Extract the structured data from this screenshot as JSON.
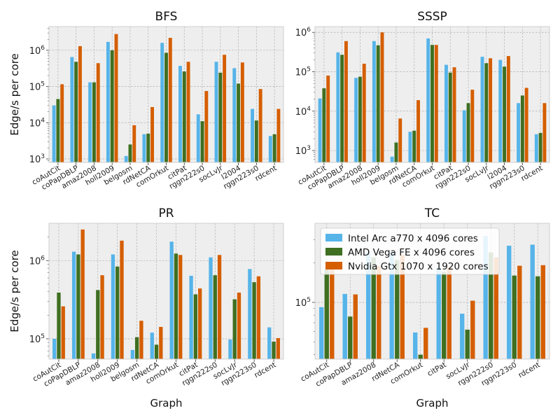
{
  "colors": {
    "intel": "#56b4e9",
    "amd": "#3f6f21",
    "nvidia": "#d55e00",
    "panel_bg": "#eeeeee",
    "grid": "#b0b0b0"
  },
  "legend": {
    "placement": "top-left of TC panel",
    "entries": [
      "Intel Arc a770 x 4096 cores",
      "AMD Vega FE x 4096 cores",
      "Nvidia Gtx 1070 x 1920 cores"
    ]
  },
  "chart_data": [
    {
      "type": "bar",
      "title": "BFS",
      "xlabel": "",
      "ylabel": "Edge/s per core",
      "yscale": "log",
      "ylim": [
        800,
        4500000
      ],
      "yticks": [
        "10^3",
        "10^4",
        "10^5",
        "10^6"
      ],
      "grid": true,
      "categories": [
        "coAutCit",
        "coPapDBLP",
        "amaz2008",
        "holl2009",
        "belgosm",
        "rdNetCA",
        "comOrkut",
        "citPat",
        "rggn222s0",
        "socLvJr",
        "l2004",
        "rggn223s0",
        "rdcent"
      ],
      "series": [
        {
          "name": "Intel Arc a770 x 4096 cores",
          "values": [
            30000,
            650000,
            130000,
            1700000,
            1200,
            4800,
            1600000,
            370000,
            17000,
            480000,
            320000,
            24000,
            4300
          ]
        },
        {
          "name": "AMD Vega FE x 4096 cores",
          "values": [
            45000,
            480000,
            130000,
            1000000,
            2500,
            5000,
            850000,
            260000,
            11000,
            240000,
            120000,
            11500,
            4800
          ]
        },
        {
          "name": "Nvidia Gtx 1070 x 1920 cores",
          "values": [
            115000,
            1300000,
            440000,
            2800000,
            8500,
            27000,
            2200000,
            480000,
            75000,
            750000,
            460000,
            85000,
            24000
          ]
        }
      ]
    },
    {
      "type": "bar",
      "title": "SSSP",
      "xlabel": "",
      "ylabel": "",
      "yscale": "log",
      "ylim": [
        500,
        1400000
      ],
      "yticks": [
        "10^3",
        "10^4",
        "10^5",
        "10^6"
      ],
      "grid": true,
      "categories": [
        "coAutCit",
        "coPapDBLP",
        "amaz2008",
        "holl2009",
        "belgosm",
        "rdNetCA",
        "comOrkut",
        "citPat",
        "rggn222s0",
        "socLvJr",
        "l2004",
        "rggn223s0",
        "rdcent"
      ],
      "series": [
        {
          "name": "Intel Arc a770 x 4096 cores",
          "values": [
            21000,
            310000,
            70000,
            600000,
            700,
            3000,
            700000,
            150000,
            10500,
            240000,
            200000,
            16000,
            2600
          ]
        },
        {
          "name": "AMD Vega FE x 4096 cores",
          "values": [
            38000,
            270000,
            75000,
            470000,
            1600,
            3200,
            480000,
            95000,
            16000,
            165000,
            135000,
            25000,
            2800
          ]
        },
        {
          "name": "Nvidia Gtx 1070 x 1920 cores",
          "values": [
            80000,
            600000,
            160000,
            1000000,
            6500,
            19000,
            480000,
            130000,
            35000,
            220000,
            250000,
            39000,
            16000
          ]
        }
      ]
    },
    {
      "type": "bar",
      "title": "PR",
      "xlabel": "Graph",
      "ylabel": "Edge/s per core",
      "yscale": "log",
      "ylim": [
        55000,
        3000000
      ],
      "yticks": [
        "10^5",
        "10^6"
      ],
      "grid": true,
      "categories": [
        "coAutCit",
        "coPapDBLP",
        "amaz2008",
        "holl2009",
        "belgosm",
        "rdNetCA",
        "comOrkut",
        "citPat",
        "rggn222s0",
        "socLvJr",
        "rggn223s0",
        "rdcent"
      ],
      "series": [
        {
          "name": "Intel Arc a770 x 4096 cores",
          "values": [
            100000,
            1300000,
            65000,
            1200000,
            72000,
            120000,
            1750000,
            640000,
            1100000,
            98000,
            780000,
            140000
          ]
        },
        {
          "name": "AMD Vega FE x 4096 cores",
          "values": [
            390000,
            1200000,
            420000,
            840000,
            105000,
            84000,
            1230000,
            370000,
            650000,
            320000,
            530000,
            92000
          ]
        },
        {
          "name": "Nvidia Gtx 1070 x 1920 cores",
          "values": [
            260000,
            2500000,
            650000,
            1800000,
            170000,
            142000,
            1180000,
            440000,
            1180000,
            390000,
            630000,
            102000
          ]
        }
      ]
    },
    {
      "type": "bar",
      "title": "TC",
      "xlabel": "Graph",
      "ylabel": "",
      "yscale": "log",
      "ylim": [
        37000,
        400000
      ],
      "yticks": [
        "10^5"
      ],
      "grid": true,
      "categories": [
        "coAutCit",
        "coPapDBLP",
        "amaz2008",
        "rdNetCA",
        "comOrkut",
        "citPat",
        "socLvJr",
        "rggn222s0",
        "rggn223s0",
        "rdcent"
      ],
      "series": [
        {
          "name": "Intel Arc a770 x 4096 cores",
          "values": [
            92000,
            116000,
            240000,
            240000,
            59000,
            187000,
            82000,
            320000,
            270000,
            275000
          ]
        },
        {
          "name": "AMD Vega FE x 4096 cores",
          "values": [
            180000,
            78000,
            220000,
            210000,
            40000,
            170000,
            62000,
            240000,
            160000,
            158000
          ]
        },
        {
          "name": "Nvidia Gtx 1070 x 1920 cores",
          "values": [
            180000,
            115000,
            190000,
            230000,
            64000,
            185000,
            103000,
            220000,
            190000,
            192000
          ]
        }
      ]
    }
  ]
}
